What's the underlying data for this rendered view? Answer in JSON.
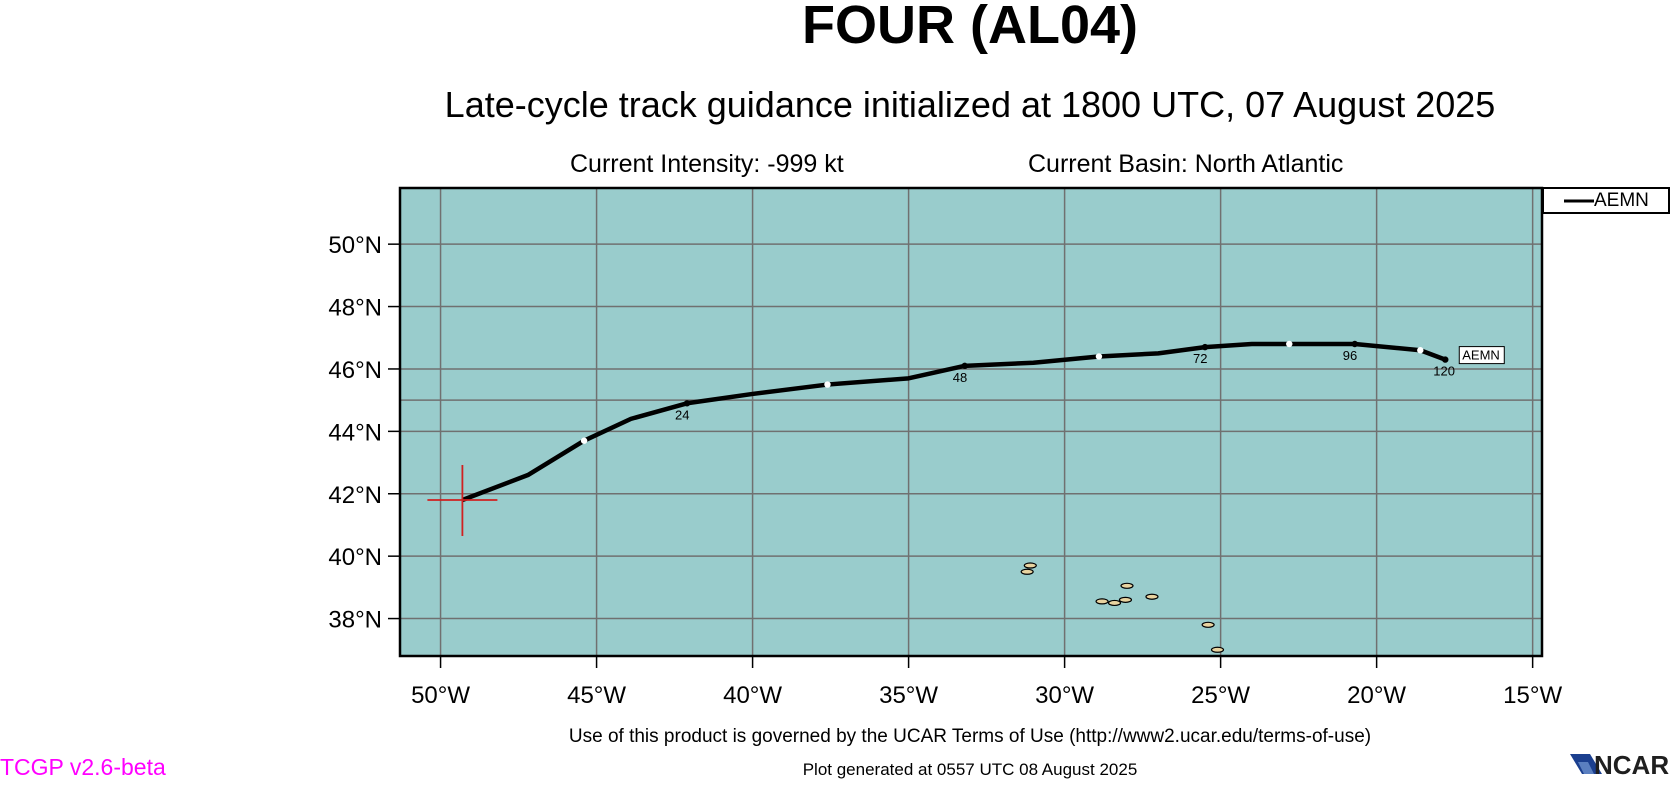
{
  "header": {
    "title": "FOUR (AL04)",
    "subtitle": "Late-cycle track guidance initialized at 1800 UTC, 07 August 2025",
    "intensity": "Current Intensity: -999 kt",
    "basin": "Current Basin: North Atlantic"
  },
  "map": {
    "region": {
      "lon": [
        -51.3,
        -14.7
      ],
      "lat": [
        36.8,
        51.8
      ]
    },
    "ocean_color": "#99cccc",
    "grid_color": "#707070",
    "lat_labels": [
      "50°N",
      "48°N",
      "46°N",
      "44°N",
      "42°N",
      "40°N",
      "38°N"
    ],
    "lat_values": [
      50,
      48,
      46,
      44,
      42,
      40,
      38
    ],
    "lon_labels": [
      "50°W",
      "45°W",
      "40°W",
      "35°W",
      "30°W",
      "25°W",
      "20°W",
      "15°W"
    ],
    "lon_values": [
      -50,
      -45,
      -40,
      -35,
      -30,
      -25,
      -20,
      -15
    ],
    "grid_lon": [
      -50,
      -45,
      -40,
      -35,
      -30,
      -25,
      -20,
      -15
    ],
    "grid_lat": [
      50,
      48,
      46,
      44,
      42,
      40,
      38,
      45
    ],
    "current_position": {
      "lon": -49.3,
      "lat": 41.8,
      "color": "#d02020"
    },
    "tracks": [
      {
        "name": "AEMN",
        "color": "#000000",
        "points": [
          [
            -49.3,
            41.8
          ],
          [
            -47.2,
            42.6
          ],
          [
            -45.4,
            43.7
          ],
          [
            -43.9,
            44.4
          ],
          [
            -42.1,
            44.9
          ],
          [
            -40.0,
            45.2
          ],
          [
            -37.6,
            45.5
          ],
          [
            -35.0,
            45.7
          ],
          [
            -33.2,
            46.1
          ],
          [
            -31.0,
            46.2
          ],
          [
            -28.9,
            46.4
          ],
          [
            -27.0,
            46.5
          ],
          [
            -25.5,
            46.7
          ],
          [
            -24.0,
            46.8
          ],
          [
            -22.8,
            46.8
          ],
          [
            -21.5,
            46.8
          ],
          [
            -20.7,
            46.8
          ],
          [
            -18.6,
            46.6
          ],
          [
            -17.8,
            46.3
          ]
        ],
        "markers": [
          {
            "lon": -45.4,
            "lat": 43.7,
            "fill": "#ffffff"
          },
          {
            "lon": -42.1,
            "lat": 44.9,
            "fill": "#000000",
            "label": "24"
          },
          {
            "lon": -37.6,
            "lat": 45.5,
            "fill": "#ffffff"
          },
          {
            "lon": -33.2,
            "lat": 46.1,
            "fill": "#000000",
            "label": "48"
          },
          {
            "lon": -28.9,
            "lat": 46.4,
            "fill": "#ffffff"
          },
          {
            "lon": -25.5,
            "lat": 46.7,
            "fill": "#000000",
            "label": "72"
          },
          {
            "lon": -22.8,
            "lat": 46.8,
            "fill": "#ffffff"
          },
          {
            "lon": -20.7,
            "lat": 46.8,
            "fill": "#000000",
            "label": "96"
          },
          {
            "lon": -18.6,
            "lat": 46.6,
            "fill": "#ffffff"
          },
          {
            "lon": -17.8,
            "lat": 46.3,
            "fill": "#000000",
            "label": "120"
          }
        ],
        "end_label": "AEMN"
      }
    ],
    "islands": [
      {
        "lon": -31.2,
        "lat": 39.5
      },
      {
        "lon": -31.1,
        "lat": 39.7
      },
      {
        "lon": -28.8,
        "lat": 38.55
      },
      {
        "lon": -28.4,
        "lat": 38.5
      },
      {
        "lon": -28.05,
        "lat": 38.6
      },
      {
        "lon": -28.0,
        "lat": 39.05
      },
      {
        "lon": -27.2,
        "lat": 38.7
      },
      {
        "lon": -25.4,
        "lat": 37.8
      },
      {
        "lon": -25.1,
        "lat": 37.0
      }
    ]
  },
  "legend": {
    "items": [
      {
        "name": "AEMN",
        "color": "#000000"
      }
    ]
  },
  "footer": {
    "terms": "Use of this product is governed by the UCAR Terms of Use (http://www2.ucar.edu/terms-of-use)",
    "generated": "Plot generated at 0557 UTC   08 August 2025",
    "version": "TCGP v2.6-beta",
    "logo_text": "NCAR"
  }
}
